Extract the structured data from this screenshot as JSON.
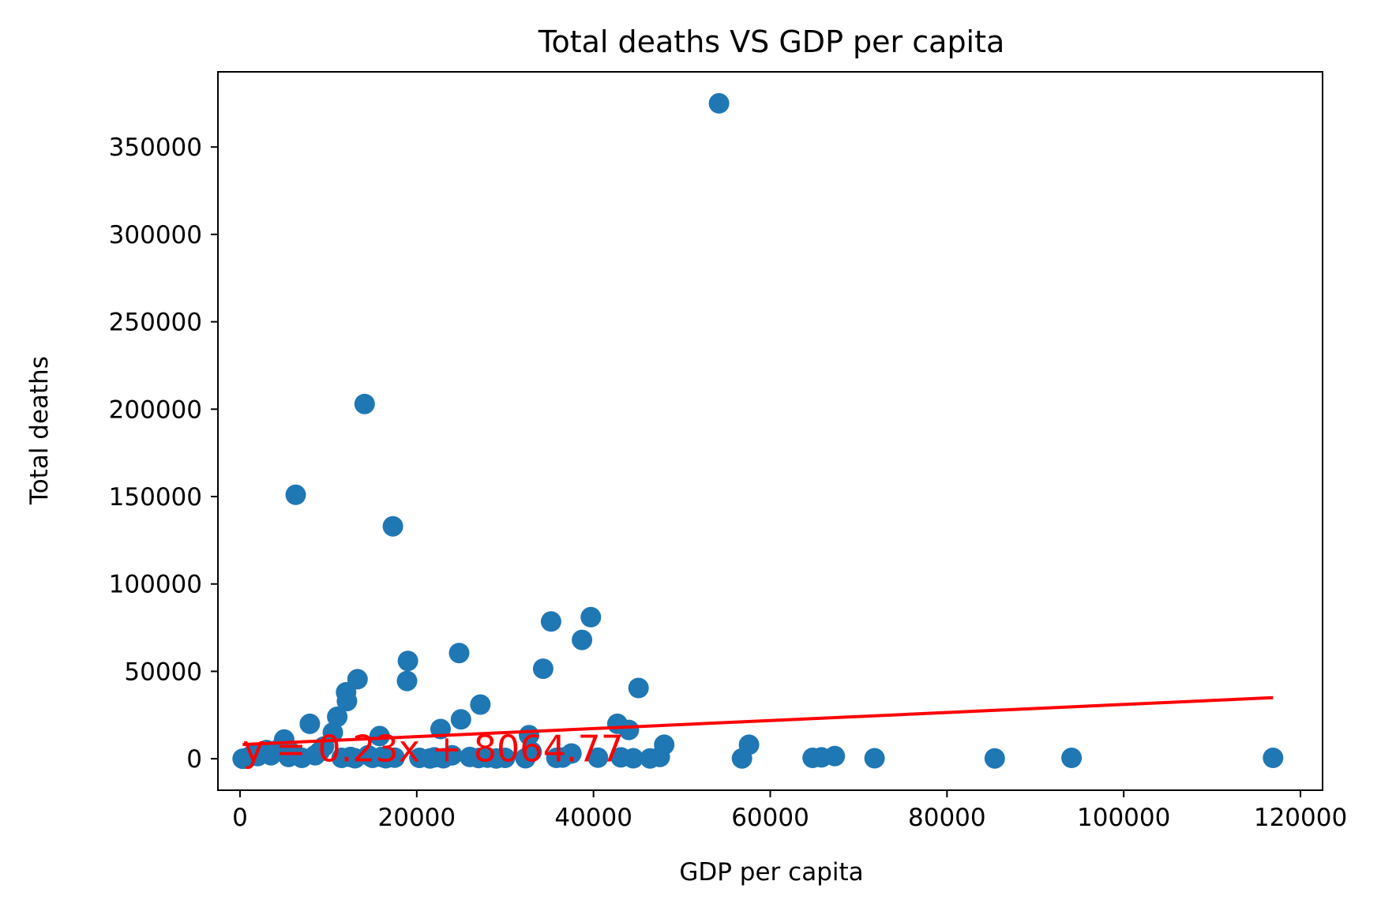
{
  "chart_data": {
    "type": "scatter",
    "title": "Total deaths VS GDP per capita",
    "xlabel": "GDP per capita",
    "ylabel": "Total deaths",
    "xlim": [
      -2500,
      122500
    ],
    "ylim": [
      -18000,
      393000
    ],
    "x_ticks": [
      0,
      20000,
      40000,
      60000,
      80000,
      100000,
      120000
    ],
    "x_tick_labels": [
      "0",
      "20000",
      "40000",
      "60000",
      "80000",
      "100000",
      "120000"
    ],
    "y_ticks": [
      0,
      50000,
      100000,
      150000,
      200000,
      250000,
      300000,
      350000
    ],
    "y_tick_labels": [
      "0",
      "50000",
      "100000",
      "150000",
      "200000",
      "250000",
      "300000",
      "350000"
    ],
    "grid": false,
    "point_color": "#1f77b4",
    "line_color": "#ff0000",
    "points": {
      "x": [
        54200,
        14100,
        6300,
        17300,
        39700,
        35200,
        38700,
        24800,
        19000,
        34300,
        18900,
        13300,
        12000,
        12100,
        45100,
        27200,
        25000,
        11000,
        7900,
        42700,
        44000,
        22700,
        15800,
        32700,
        10500,
        5000,
        48000,
        57600,
        67300,
        64800,
        65800,
        56800,
        71800,
        85400,
        94100,
        116900,
        300,
        1000,
        1500,
        2000,
        2500,
        3000,
        3500,
        4000,
        4500,
        5500,
        6000,
        7000,
        8500,
        9000,
        9500,
        11500,
        12500,
        13000,
        14500,
        15000,
        16000,
        16500,
        17500,
        20300,
        21500,
        22000,
        23000,
        24000,
        26000,
        27000,
        28000,
        29000,
        30000,
        32300,
        33000,
        35800,
        36500,
        37500,
        40500,
        43100,
        44500,
        46400,
        47500
      ],
      "y": [
        375000,
        203000,
        151000,
        133000,
        81000,
        78500,
        68000,
        60500,
        56000,
        51500,
        44500,
        45500,
        38000,
        33000,
        40500,
        31000,
        22500,
        24000,
        20000,
        20000,
        16500,
        17000,
        13000,
        13500,
        15000,
        11000,
        8000,
        8000,
        1500,
        500,
        800,
        200,
        300,
        200,
        500,
        500,
        0,
        1000,
        2000,
        1500,
        3000,
        5000,
        2000,
        4000,
        6000,
        1000,
        3000,
        500,
        2000,
        4000,
        7000,
        500,
        1000,
        300,
        2000,
        500,
        1000,
        300,
        600,
        500,
        200,
        800,
        300,
        2000,
        1000,
        400,
        600,
        200,
        500,
        300,
        4000,
        500,
        700,
        3000,
        600,
        800,
        300,
        200,
        1000
      ]
    },
    "fit_line": {
      "slope": 0.23,
      "intercept": 8064.77,
      "x_range": [
        300,
        116900
      ],
      "label": "y = 0.23x + 8064.77",
      "label_position": [
        300,
        -1500
      ]
    }
  }
}
